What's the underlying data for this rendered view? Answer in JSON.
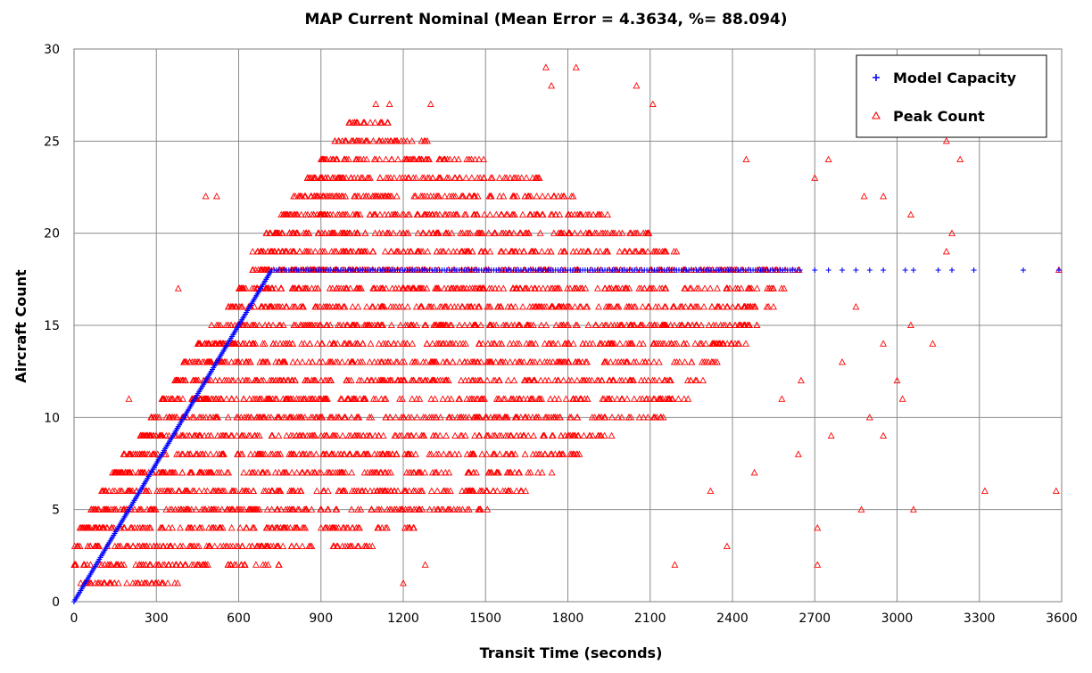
{
  "chart_data": {
    "type": "scatter",
    "title": "MAP Current Nominal (Mean Error = 4.3634, %= 88.094)",
    "xlabel": "Transit Time (seconds)",
    "ylabel": "Aircraft Count",
    "xlim": [
      0,
      3600
    ],
    "ylim": [
      0,
      30
    ],
    "x_ticks": [
      0,
      300,
      600,
      900,
      1200,
      1500,
      1800,
      2100,
      2400,
      2700,
      3000,
      3300,
      3600
    ],
    "y_ticks": [
      0,
      5,
      10,
      15,
      20,
      25,
      30
    ],
    "grid": true,
    "legend_position": "top-right",
    "series": [
      {
        "name": "Model Capacity",
        "marker": "plus",
        "color": "#0000ff",
        "ramp_points": [
          [
            0,
            0
          ],
          [
            300,
            7.5
          ],
          [
            450,
            11.25
          ],
          [
            600,
            15
          ],
          [
            720,
            18
          ]
        ],
        "values": [
          [
            0,
            0
          ],
          [
            40,
            1
          ],
          [
            80,
            2
          ],
          [
            120,
            3
          ],
          [
            160,
            4
          ],
          [
            200,
            5
          ],
          [
            240,
            6
          ],
          [
            280,
            7
          ],
          [
            320,
            8
          ],
          [
            360,
            9
          ],
          [
            400,
            10
          ],
          [
            440,
            11
          ],
          [
            480,
            12
          ],
          [
            520,
            13
          ],
          [
            560,
            14
          ],
          [
            600,
            15
          ],
          [
            640,
            16
          ],
          [
            680,
            17
          ],
          [
            720,
            18
          ],
          [
            750,
            18
          ],
          [
            800,
            18
          ],
          [
            900,
            18
          ],
          [
            1000,
            18
          ],
          [
            1100,
            18
          ],
          [
            1200,
            18
          ],
          [
            1300,
            18
          ],
          [
            1400,
            18
          ],
          [
            1500,
            18
          ],
          [
            1600,
            18
          ],
          [
            1700,
            18
          ],
          [
            1800,
            18
          ],
          [
            1900,
            18
          ],
          [
            2000,
            18
          ],
          [
            2100,
            18
          ],
          [
            2200,
            18
          ],
          [
            2300,
            18
          ],
          [
            2400,
            18
          ],
          [
            2500,
            18
          ],
          [
            2600,
            18
          ],
          [
            2650,
            18
          ],
          [
            2700,
            18
          ],
          [
            2750,
            18
          ],
          [
            2800,
            18
          ],
          [
            2850,
            18
          ],
          [
            2900,
            18
          ],
          [
            2950,
            18
          ],
          [
            3030,
            18
          ],
          [
            3060,
            18
          ],
          [
            3150,
            18
          ],
          [
            3200,
            18
          ],
          [
            3280,
            18
          ],
          [
            3460,
            18
          ],
          [
            3590,
            18
          ]
        ]
      },
      {
        "name": "Peak Count",
        "marker": "triangle",
        "color": "#ff0000",
        "band_ranges": [
          [
            1,
            0,
            380
          ],
          [
            2,
            0,
            750
          ],
          [
            3,
            0,
            1100
          ],
          [
            4,
            20,
            1250
          ],
          [
            5,
            60,
            1550
          ],
          [
            6,
            100,
            1650
          ],
          [
            7,
            140,
            1750
          ],
          [
            8,
            180,
            1900
          ],
          [
            9,
            240,
            2000
          ],
          [
            10,
            280,
            2150
          ],
          [
            11,
            320,
            2250
          ],
          [
            12,
            360,
            2300
          ],
          [
            13,
            400,
            2350
          ],
          [
            14,
            450,
            2450
          ],
          [
            15,
            500,
            2500
          ],
          [
            16,
            560,
            2550
          ],
          [
            17,
            600,
            2600
          ],
          [
            18,
            650,
            2650
          ],
          [
            19,
            650,
            2200
          ],
          [
            20,
            700,
            2100
          ],
          [
            21,
            750,
            1950
          ],
          [
            22,
            800,
            1850
          ],
          [
            23,
            850,
            1700
          ],
          [
            24,
            900,
            1500
          ],
          [
            25,
            950,
            1300
          ],
          [
            26,
            1000,
            1150
          ]
        ],
        "extra_points": [
          [
            30,
            4
          ],
          [
            50,
            3
          ],
          [
            80,
            4
          ],
          [
            200,
            11
          ],
          [
            380,
            17
          ],
          [
            480,
            22
          ],
          [
            520,
            22
          ],
          [
            1080,
            26
          ],
          [
            1100,
            27
          ],
          [
            1150,
            27
          ],
          [
            1300,
            27
          ],
          [
            1740,
            28
          ],
          [
            1720,
            29
          ],
          [
            1830,
            29
          ],
          [
            2050,
            28
          ],
          [
            2110,
            27
          ],
          [
            2450,
            24
          ],
          [
            2750,
            24
          ],
          [
            2700,
            23
          ],
          [
            2880,
            22
          ],
          [
            2950,
            22
          ],
          [
            3050,
            21
          ],
          [
            3180,
            25
          ],
          [
            3230,
            24
          ],
          [
            3200,
            20
          ],
          [
            3180,
            19
          ],
          [
            3050,
            15
          ],
          [
            3130,
            14
          ],
          [
            3000,
            12
          ],
          [
            3020,
            11
          ],
          [
            2950,
            9
          ],
          [
            2870,
            5
          ],
          [
            3060,
            5
          ],
          [
            3320,
            6
          ],
          [
            3580,
            6
          ],
          [
            2710,
            4
          ],
          [
            2710,
            2
          ],
          [
            2190,
            2
          ],
          [
            2380,
            3
          ],
          [
            1200,
            1
          ],
          [
            1280,
            2
          ],
          [
            2850,
            16
          ],
          [
            2950,
            14
          ],
          [
            2640,
            8
          ],
          [
            2760,
            9
          ],
          [
            2900,
            10
          ],
          [
            2480,
            7
          ],
          [
            2320,
            6
          ],
          [
            2580,
            11
          ],
          [
            2650,
            12
          ],
          [
            2800,
            13
          ],
          [
            3590,
            18
          ]
        ]
      }
    ]
  }
}
